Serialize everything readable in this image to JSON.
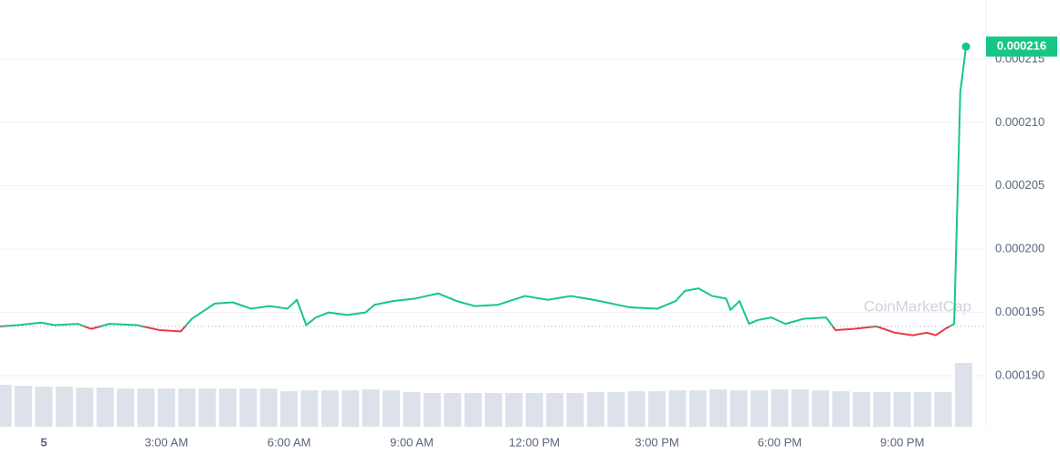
{
  "chart_data": {
    "type": "line",
    "x": [
      -1.07,
      -0.63,
      -0.07,
      0.27,
      0.83,
      1.16,
      1.61,
      2.28,
      2.84,
      3.35,
      3.62,
      3.95,
      4.18,
      4.62,
      5.07,
      5.52,
      5.96,
      6.19,
      6.42,
      6.65,
      6.97,
      7.42,
      7.87,
      8.09,
      8.54,
      9.09,
      9.65,
      10.1,
      10.55,
      11.1,
      11.77,
      12.33,
      12.89,
      13.45,
      14.34,
      15.01,
      15.46,
      15.68,
      16.02,
      16.35,
      16.69,
      16.8,
      17.02,
      17.25,
      17.47,
      17.8,
      18.14,
      18.59,
      19.14,
      19.37,
      19.81,
      20.37,
      20.82,
      21.26,
      21.6,
      21.82,
      22.05,
      22.27,
      22.42,
      22.56
    ],
    "values": [
      0.0001939,
      0.000194,
      0.0001942,
      0.000194,
      0.0001941,
      0.0001937,
      0.0001941,
      0.000194,
      0.0001936,
      0.0001935,
      0.0001945,
      0.0001952,
      0.0001957,
      0.0001958,
      0.0001953,
      0.0001955,
      0.0001953,
      0.000196,
      0.000194,
      0.0001946,
      0.000195,
      0.0001948,
      0.000195,
      0.0001956,
      0.0001959,
      0.0001961,
      0.0001965,
      0.0001959,
      0.0001955,
      0.0001956,
      0.0001963,
      0.000196,
      0.0001963,
      0.000196,
      0.0001954,
      0.0001953,
      0.0001959,
      0.0001967,
      0.0001969,
      0.0001963,
      0.0001961,
      0.0001952,
      0.0001959,
      0.0001941,
      0.0001944,
      0.0001946,
      0.0001941,
      0.0001945,
      0.0001946,
      0.0001936,
      0.0001937,
      0.0001939,
      0.0001934,
      0.0001932,
      0.0001934,
      0.0001932,
      0.0001937,
      0.0001941,
      0.0002124,
      0.000216
    ],
    "colors": {
      "up": "#16c784",
      "down": "#ea3943"
    },
    "baseline": 0.0001939,
    "xlim": [
      -1.072,
      23.05
    ],
    "xticks": [
      {
        "value": 0,
        "label": "5"
      },
      {
        "value": 3,
        "label": "3:00 AM"
      },
      {
        "value": 6,
        "label": "6:00 AM"
      },
      {
        "value": 9,
        "label": "9:00 AM"
      },
      {
        "value": 12,
        "label": "12:00 PM"
      },
      {
        "value": 15,
        "label": "3:00 PM"
      },
      {
        "value": 18,
        "label": "6:00 PM"
      },
      {
        "value": 21,
        "label": "9:00 PM"
      }
    ],
    "ylim": [
      0.0001865,
      0.0002195
    ],
    "yticks": [
      {
        "value": 0.00019,
        "label": "0.000190"
      },
      0.000195,
      {
        "value": 0.0002,
        "label": "0.000200"
      },
      0.000205,
      {
        "value": 0.00021,
        "label": "0.000210"
      },
      0.000215
    ],
    "grid": true,
    "watermark": "CoinMarketCap",
    "volume": {
      "color": "#dde2ea",
      "x": [
        -1,
        -0.5,
        0,
        0.5,
        1,
        1.5,
        2,
        2.5,
        3,
        3.5,
        4,
        4.5,
        5,
        5.5,
        6,
        6.5,
        7,
        7.5,
        8,
        8.5,
        9,
        9.5,
        10,
        10.5,
        11,
        11.5,
        12,
        12.5,
        13,
        13.5,
        14,
        14.5,
        15,
        15.5,
        16,
        16.5,
        17,
        17.5,
        18,
        18.5,
        19,
        19.5,
        20,
        20.5,
        21,
        21.5,
        22,
        22.5
      ],
      "values": [
        46,
        45,
        44,
        44,
        43,
        43,
        42,
        42,
        42,
        42,
        42,
        42,
        42,
        42,
        39,
        40,
        40,
        40,
        41,
        40,
        38,
        37,
        37,
        37,
        37,
        37,
        37,
        37,
        37,
        38,
        38,
        39,
        39,
        40,
        40,
        41,
        40,
        40,
        41,
        41,
        40,
        39,
        38,
        38,
        38,
        38,
        38,
        70
      ]
    }
  }
}
